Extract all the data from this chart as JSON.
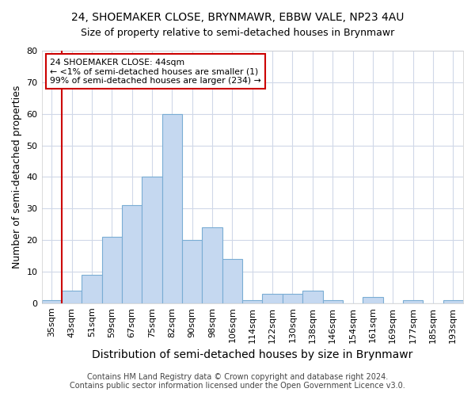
{
  "title": "24, SHOEMAKER CLOSE, BRYNMAWR, EBBW VALE, NP23 4AU",
  "subtitle": "Size of property relative to semi-detached houses in Brynmawr",
  "xlabel": "Distribution of semi-detached houses by size in Brynmawr",
  "ylabel": "Number of semi-detached properties",
  "categories": [
    "35sqm",
    "43sqm",
    "51sqm",
    "59sqm",
    "67sqm",
    "75sqm",
    "82sqm",
    "90sqm",
    "98sqm",
    "106sqm",
    "114sqm",
    "122sqm",
    "130sqm",
    "138sqm",
    "146sqm",
    "154sqm",
    "161sqm",
    "169sqm",
    "177sqm",
    "185sqm",
    "193sqm"
  ],
  "bar_values": [
    1,
    4,
    9,
    21,
    31,
    40,
    60,
    20,
    24,
    14,
    1,
    3,
    3,
    4,
    1,
    0,
    2,
    0,
    1,
    0,
    1
  ],
  "bar_color": "#c5d8f0",
  "bar_edge_color": "#7aadd4",
  "annotation_line1": "24 SHOEMAKER CLOSE: 44sqm",
  "annotation_line2": "← <1% of semi-detached houses are smaller (1)",
  "annotation_line3": "99% of semi-detached houses are larger (234) →",
  "annotation_box_color": "#ffffff",
  "annotation_box_edge": "#cc0000",
  "line_color": "#cc0000",
  "property_bar_index": 1,
  "ylim": [
    0,
    80
  ],
  "yticks": [
    0,
    10,
    20,
    30,
    40,
    50,
    60,
    70,
    80
  ],
  "background_color": "#ffffff",
  "plot_bg_color": "#ffffff",
  "grid_color": "#d0d8e8",
  "footer1": "Contains HM Land Registry data © Crown copyright and database right 2024.",
  "footer2": "Contains public sector information licensed under the Open Government Licence v3.0.",
  "title_fontsize": 10,
  "subtitle_fontsize": 9,
  "axis_label_fontsize": 9,
  "tick_fontsize": 8,
  "footer_fontsize": 7
}
